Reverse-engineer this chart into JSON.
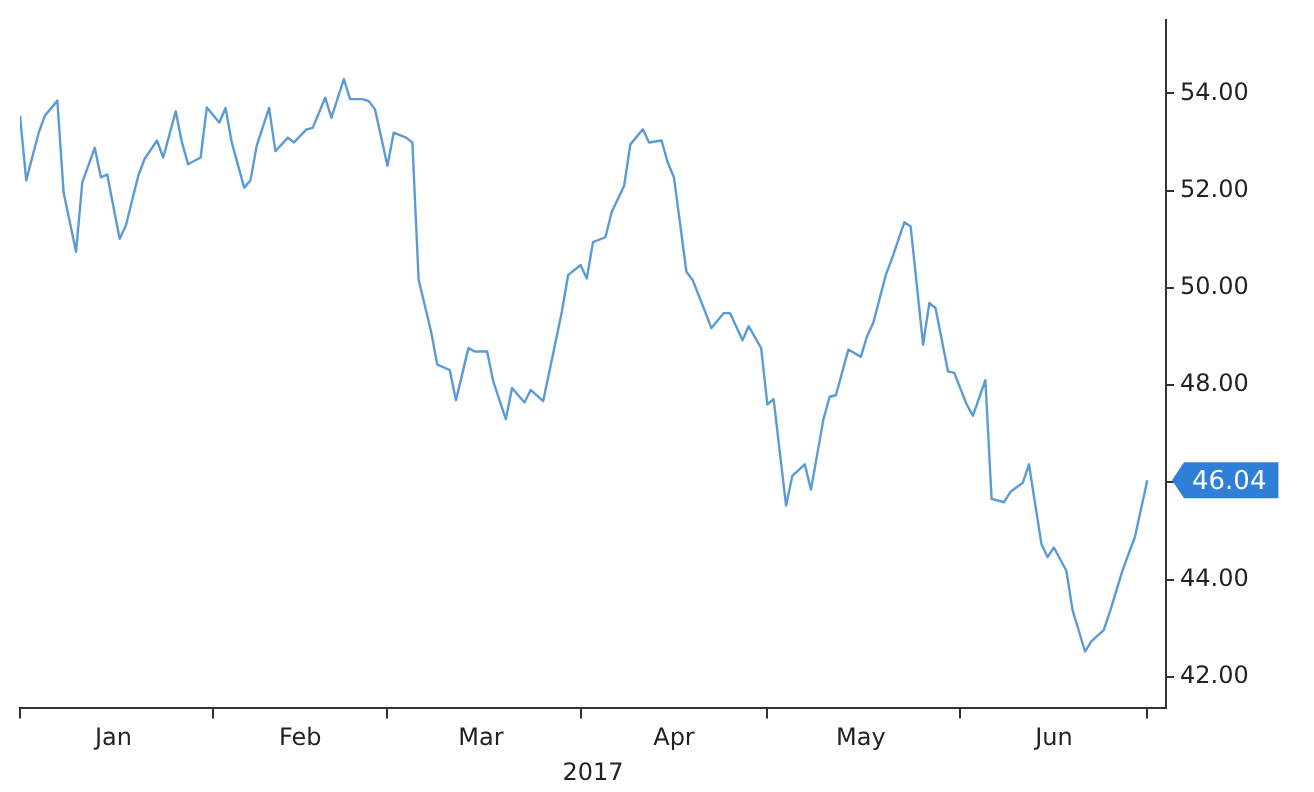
{
  "chart_data": {
    "type": "line",
    "xlabel": "2017",
    "x": [
      "2017-01-01",
      "2017-01-02",
      "2017-01-04",
      "2017-01-05",
      "2017-01-07",
      "2017-01-08",
      "2017-01-10",
      "2017-01-11",
      "2017-01-13",
      "2017-01-14",
      "2017-01-15",
      "2017-01-17",
      "2017-01-18",
      "2017-01-20",
      "2017-01-21",
      "2017-01-23",
      "2017-01-24",
      "2017-01-26",
      "2017-01-27",
      "2017-01-28",
      "2017-01-30",
      "2017-01-31",
      "2017-02-02",
      "2017-02-03",
      "2017-02-04",
      "2017-02-06",
      "2017-02-07",
      "2017-02-08",
      "2017-02-10",
      "2017-02-11",
      "2017-02-13",
      "2017-02-14",
      "2017-02-16",
      "2017-02-17",
      "2017-02-19",
      "2017-02-20",
      "2017-02-22",
      "2017-02-23",
      "2017-02-25",
      "2017-02-26",
      "2017-02-27",
      "2017-03-01",
      "2017-03-02",
      "2017-03-04",
      "2017-03-05",
      "2017-03-06",
      "2017-03-08",
      "2017-03-09",
      "2017-03-11",
      "2017-03-12",
      "2017-03-14",
      "2017-03-15",
      "2017-03-17",
      "2017-03-18",
      "2017-03-20",
      "2017-03-21",
      "2017-03-23",
      "2017-03-24",
      "2017-03-26",
      "2017-03-27",
      "2017-03-29",
      "2017-03-30",
      "2017-04-01",
      "2017-04-02",
      "2017-04-03",
      "2017-04-05",
      "2017-04-06",
      "2017-04-08",
      "2017-04-09",
      "2017-04-11",
      "2017-04-12",
      "2017-04-14",
      "2017-04-15",
      "2017-04-16",
      "2017-04-18",
      "2017-04-19",
      "2017-04-21",
      "2017-04-22",
      "2017-04-24",
      "2017-04-25",
      "2017-04-27",
      "2017-04-28",
      "2017-04-30",
      "2017-05-01",
      "2017-05-02",
      "2017-05-04",
      "2017-05-05",
      "2017-05-07",
      "2017-05-08",
      "2017-05-10",
      "2017-05-11",
      "2017-05-12",
      "2017-05-14",
      "2017-05-16",
      "2017-05-17",
      "2017-05-18",
      "2017-05-20",
      "2017-05-21",
      "2017-05-23",
      "2017-05-24",
      "2017-05-26",
      "2017-05-27",
      "2017-05-28",
      "2017-05-30",
      "2017-05-31",
      "2017-06-02",
      "2017-06-03",
      "2017-06-05",
      "2017-06-06",
      "2017-06-08",
      "2017-06-09",
      "2017-06-11",
      "2017-06-12",
      "2017-06-14",
      "2017-06-15",
      "2017-06-16",
      "2017-06-18",
      "2017-06-19",
      "2017-06-21",
      "2017-06-22",
      "2017-06-24",
      "2017-06-25",
      "2017-06-27",
      "2017-06-28",
      "2017-06-29",
      "2017-07-01"
    ],
    "series": [
      {
        "color": "#5b9bd5",
        "values": [
          53.54,
          52.21,
          53.19,
          53.54,
          53.85,
          51.96,
          50.74,
          52.17,
          52.88,
          52.27,
          52.33,
          51.01,
          51.28,
          52.31,
          52.65,
          53.03,
          52.68,
          53.63,
          52.99,
          52.54,
          52.68,
          53.71,
          53.4,
          53.7,
          52.99,
          52.06,
          52.21,
          52.92,
          53.7,
          52.81,
          53.09,
          52.99,
          53.26,
          53.29,
          53.91,
          53.5,
          54.29,
          53.88,
          53.88,
          53.84,
          53.67,
          52.51,
          53.19,
          53.09,
          52.99,
          50.17,
          49.1,
          48.42,
          48.31,
          47.69,
          48.76,
          48.69,
          48.69,
          48.07,
          47.3,
          47.94,
          47.64,
          47.9,
          47.67,
          48.28,
          49.51,
          50.26,
          50.47,
          50.19,
          50.94,
          51.04,
          51.56,
          52.1,
          52.95,
          53.26,
          52.99,
          53.03,
          52.58,
          52.27,
          50.33,
          50.16,
          49.51,
          49.17,
          49.48,
          49.48,
          48.92,
          49.21,
          48.76,
          47.6,
          47.71,
          45.52,
          46.13,
          46.37,
          45.85,
          47.3,
          47.76,
          47.79,
          48.73,
          48.58,
          49.0,
          49.28,
          50.26,
          50.6,
          51.35,
          51.26,
          48.83,
          49.69,
          49.58,
          48.28,
          48.25,
          47.6,
          47.37,
          48.1,
          45.66,
          45.59,
          45.8,
          45.99,
          46.37,
          44.73,
          44.46,
          44.66,
          44.18,
          43.37,
          42.52,
          42.73,
          42.96,
          43.34,
          44.18,
          44.53,
          44.87,
          46.04
        ]
      }
    ],
    "xlim": [
      "2017-01-01",
      "2017-07-04"
    ],
    "xticks": [
      {
        "value": "2017-01-01",
        "label": null
      },
      {
        "value": "2017-01-16",
        "label": "Jan"
      },
      {
        "value": "2017-02-01",
        "label": null
      },
      {
        "value": "2017-02-15",
        "label": "Feb"
      },
      {
        "value": "2017-03-01",
        "label": null
      },
      {
        "value": "2017-03-16",
        "label": "Mar"
      },
      {
        "value": "2017-04-01",
        "label": null
      },
      {
        "value": "2017-04-16",
        "label": "Apr"
      },
      {
        "value": "2017-05-01",
        "label": null
      },
      {
        "value": "2017-05-16",
        "label": "May"
      },
      {
        "value": "2017-06-01",
        "label": null
      },
      {
        "value": "2017-06-16",
        "label": "Jun"
      },
      {
        "value": "2017-07-01",
        "label": null
      }
    ],
    "ylim": [
      41.35,
      55.5
    ],
    "yticks": [
      {
        "value": 42,
        "label": "42.00"
      },
      {
        "value": 44,
        "label": "44.00"
      },
      {
        "value": 46,
        "label": null
      },
      {
        "value": 48,
        "label": "48.00"
      },
      {
        "value": 50,
        "label": "50.00"
      },
      {
        "value": 52,
        "label": "52.00"
      },
      {
        "value": 54,
        "label": "54.00"
      }
    ],
    "annotations": [
      {
        "text": "46.04",
        "x": "2017-07-01",
        "y": 46.04
      }
    ],
    "grid": false,
    "legend": false,
    "marker": "none",
    "line_style": "solid"
  }
}
